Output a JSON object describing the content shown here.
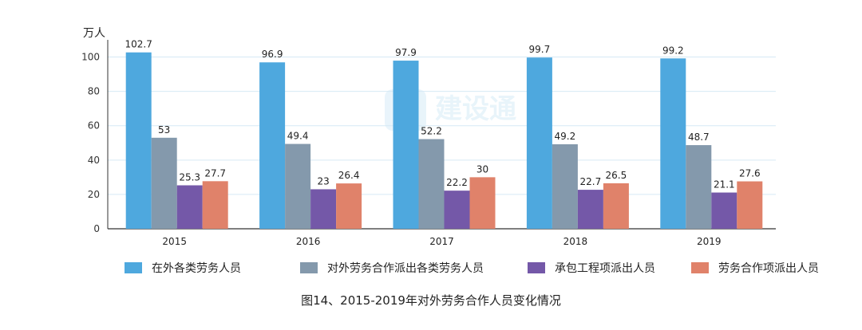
{
  "chart_data": {
    "type": "bar",
    "ylabel": "万人",
    "ylim": [
      0,
      110
    ],
    "yticks": [
      0,
      20,
      40,
      60,
      80,
      100
    ],
    "grid": true,
    "legend_position": "bottom",
    "categories": [
      "2015",
      "2016",
      "2017",
      "2018",
      "2019"
    ],
    "series": [
      {
        "name": "在外各类劳务人员",
        "color": "#4EA8DE",
        "values": [
          102.7,
          96.9,
          97.9,
          99.7,
          99.2
        ],
        "labels": [
          "102.7",
          "96.9",
          "97.9",
          "99.7",
          "99.2"
        ]
      },
      {
        "name": "对外劳务合作派出各类劳务人员",
        "color": "#8499AC",
        "values": [
          53,
          49.4,
          52.2,
          49.2,
          48.7
        ],
        "labels": [
          "53",
          "49.4",
          "52.2",
          "49.2",
          "48.7"
        ]
      },
      {
        "name": "承包工程项派出人员",
        "color": "#7458A8",
        "values": [
          25.3,
          23,
          22.2,
          22.7,
          21.1
        ],
        "labels": [
          "25.3",
          "23",
          "22.2",
          "22.7",
          "21.1"
        ]
      },
      {
        "name": "劳务合作项派出人员",
        "color": "#E0826A",
        "values": [
          27.7,
          26.4,
          30,
          26.5,
          27.6
        ],
        "labels": [
          "27.7",
          "26.4",
          "30",
          "26.5",
          "27.6"
        ]
      }
    ],
    "watermark": "建设通"
  },
  "caption": "图14、2015-2019年对外劳务合作人员变化情况"
}
